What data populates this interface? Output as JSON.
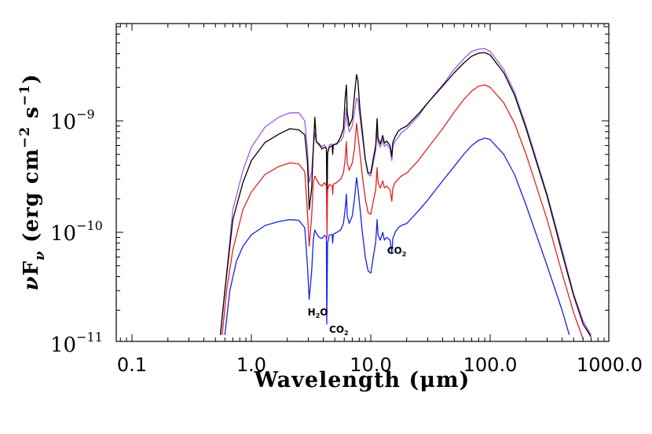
{
  "chart_data": {
    "type": "line",
    "title": "",
    "xlabel": "Wavelength (μm)",
    "ylabel_parts": {
      "nu": "ν",
      "F": "F",
      "sub": "ν",
      "open": " (erg cm",
      "exp1": "−2",
      "mid": " s",
      "exp2": "−1",
      "close": ")"
    },
    "xscale": "log",
    "yscale": "log",
    "xlim": [
      0.06,
      1000
    ],
    "ylim": [
      1.3e-11,
      8e-09
    ],
    "x_tick_labels": [
      "0.1",
      "1.0",
      "10.0",
      "100.0",
      "1000.0"
    ],
    "x_tick_values": [
      0.1,
      1,
      10,
      100,
      1000
    ],
    "y_tick_labels": [
      {
        "base": "10",
        "exp": "−9",
        "value": 1e-09
      },
      {
        "base": "10",
        "exp": "−10",
        "value": 1e-10
      },
      {
        "base": "10",
        "exp": "−11",
        "value": 1e-11
      }
    ],
    "grid": false,
    "legend": "none",
    "annotations": [
      {
        "main": "H",
        "sub": "2",
        "rest": "O",
        "x": 3.6,
        "y": 1.8e-11
      },
      {
        "main": "CO",
        "sub": "2",
        "rest": "",
        "x": 5.4,
        "y": 1.25e-11
      },
      {
        "main": "CO",
        "sub": "2",
        "rest": "",
        "x": 16.5,
        "y": 6.4e-11
      }
    ],
    "series": [
      {
        "color": "#a15bd9",
        "points": [
          [
            0.55,
            1.2e-11
          ],
          [
            0.6,
            3e-11
          ],
          [
            0.7,
            1.6e-10
          ],
          [
            0.85,
            3.6e-10
          ],
          [
            1.0,
            5.8e-10
          ],
          [
            1.3,
            8.8e-10
          ],
          [
            1.7,
            1.08e-09
          ],
          [
            2.1,
            1.18e-09
          ],
          [
            2.5,
            1.18e-09
          ],
          [
            2.8,
            1e-09
          ],
          [
            2.95,
            5.5e-10
          ],
          [
            3.05,
            2.8e-10
          ],
          [
            3.2,
            3.5e-10
          ],
          [
            3.3,
            5.7e-10
          ],
          [
            3.4,
            7.8e-10
          ],
          [
            3.5,
            6.5e-10
          ],
          [
            3.7,
            6e-10
          ],
          [
            3.9,
            5.9e-10
          ],
          [
            4.1,
            6.1e-10
          ],
          [
            4.25,
            5.6e-10
          ],
          [
            4.3,
            1.8e-10
          ],
          [
            4.35,
            5e-10
          ],
          [
            4.5,
            6.1e-10
          ],
          [
            4.75,
            6.2e-10
          ],
          [
            4.8,
            5.4e-10
          ],
          [
            4.85,
            6.1e-10
          ],
          [
            5.2,
            6.3e-10
          ],
          [
            5.6,
            6.6e-10
          ],
          [
            5.9,
            7.3e-10
          ],
          [
            6.1,
            9.6e-10
          ],
          [
            6.25,
            1.3e-09
          ],
          [
            6.35,
            9.8e-10
          ],
          [
            6.6,
            8e-10
          ],
          [
            7.0,
            9e-10
          ],
          [
            7.3,
            1.2e-09
          ],
          [
            7.6,
            1.6e-09
          ],
          [
            7.8,
            1.55e-09
          ],
          [
            8.1,
            1.1e-09
          ],
          [
            8.5,
            7.3e-10
          ],
          [
            9.0,
            4.5e-10
          ],
          [
            9.5,
            3.3e-10
          ],
          [
            10.0,
            3.2e-10
          ],
          [
            10.5,
            4.2e-10
          ],
          [
            11.0,
            5.5e-10
          ],
          [
            11.3,
            8.4e-10
          ],
          [
            11.5,
            6.4e-10
          ],
          [
            12.0,
            5.8e-10
          ],
          [
            12.6,
            6.8e-10
          ],
          [
            13.0,
            5.9e-10
          ],
          [
            13.6,
            6.2e-10
          ],
          [
            14.5,
            5.6e-10
          ],
          [
            15.0,
            4.4e-10
          ],
          [
            15.3,
            5.9e-10
          ],
          [
            16.0,
            6.6e-10
          ],
          [
            17.0,
            7.1e-10
          ],
          [
            18.0,
            7.8e-10
          ],
          [
            20.0,
            8.5e-10
          ],
          [
            25.0,
            1.1e-09
          ],
          [
            30.0,
            1.45e-09
          ],
          [
            40.0,
            2.1e-09
          ],
          [
            50.0,
            2.9e-09
          ],
          [
            60.0,
            3.6e-09
          ],
          [
            70.0,
            4.2e-09
          ],
          [
            80.0,
            4.4e-09
          ],
          [
            90.0,
            4.45e-09
          ],
          [
            100.0,
            4.2e-09
          ],
          [
            130.0,
            2.9e-09
          ],
          [
            160.0,
            1.8e-09
          ],
          [
            200.0,
            9e-10
          ],
          [
            300.0,
            2.2e-10
          ],
          [
            400.0,
            7e-11
          ],
          [
            500.0,
            2.8e-11
          ],
          [
            600.0,
            1.6e-11
          ],
          [
            700.0,
            1.2e-11
          ]
        ]
      },
      {
        "color": "#000000",
        "points": [
          [
            0.55,
            1.2e-11
          ],
          [
            0.6,
            3e-11
          ],
          [
            0.7,
            1.3e-10
          ],
          [
            0.85,
            2.8e-10
          ],
          [
            1.0,
            4.4e-10
          ],
          [
            1.3,
            6.4e-10
          ],
          [
            1.7,
            7.6e-10
          ],
          [
            2.1,
            8.5e-10
          ],
          [
            2.5,
            8.3e-10
          ],
          [
            2.8,
            7.5e-10
          ],
          [
            2.95,
            4.2e-10
          ],
          [
            3.05,
            1.6e-10
          ],
          [
            3.2,
            2.5e-10
          ],
          [
            3.3,
            5.5e-10
          ],
          [
            3.4,
            1.08e-09
          ],
          [
            3.5,
            6.5e-10
          ],
          [
            3.7,
            6.2e-10
          ],
          [
            3.9,
            5.6e-10
          ],
          [
            4.1,
            5.8e-10
          ],
          [
            4.25,
            5.7e-10
          ],
          [
            4.3,
            1.8e-10
          ],
          [
            4.35,
            5.2e-10
          ],
          [
            4.5,
            5.8e-10
          ],
          [
            4.75,
            6e-10
          ],
          [
            4.8,
            5e-10
          ],
          [
            4.85,
            6.1e-10
          ],
          [
            5.2,
            6.2e-10
          ],
          [
            5.6,
            7.2e-10
          ],
          [
            5.9,
            8.5e-10
          ],
          [
            6.1,
            1.6e-09
          ],
          [
            6.25,
            2.1e-09
          ],
          [
            6.35,
            1.2e-09
          ],
          [
            6.6,
            9e-10
          ],
          [
            7.0,
            1.05e-09
          ],
          [
            7.3,
            1.7e-09
          ],
          [
            7.6,
            2.6e-09
          ],
          [
            7.8,
            2.3e-09
          ],
          [
            8.1,
            1.3e-09
          ],
          [
            8.5,
            8e-10
          ],
          [
            9.0,
            4.5e-10
          ],
          [
            9.5,
            3.4e-10
          ],
          [
            10.0,
            3.4e-10
          ],
          [
            10.5,
            4.6e-10
          ],
          [
            11.0,
            6e-10
          ],
          [
            11.3,
            1.05e-09
          ],
          [
            11.5,
            7e-10
          ],
          [
            12.0,
            6.2e-10
          ],
          [
            12.6,
            7.4e-10
          ],
          [
            13.0,
            6.3e-10
          ],
          [
            13.6,
            6.6e-10
          ],
          [
            14.5,
            6e-10
          ],
          [
            15.0,
            4.8e-10
          ],
          [
            15.3,
            6.4e-10
          ],
          [
            16.0,
            7.2e-10
          ],
          [
            17.0,
            8.1e-10
          ],
          [
            18.0,
            8.5e-10
          ],
          [
            20.0,
            9e-10
          ],
          [
            25.0,
            1.15e-09
          ],
          [
            30.0,
            1.45e-09
          ],
          [
            40.0,
            2.05e-09
          ],
          [
            50.0,
            2.7e-09
          ],
          [
            60.0,
            3.3e-09
          ],
          [
            70.0,
            3.8e-09
          ],
          [
            80.0,
            4.05e-09
          ],
          [
            90.0,
            4.1e-09
          ],
          [
            100.0,
            3.9e-09
          ],
          [
            130.0,
            2.7e-09
          ],
          [
            160.0,
            1.7e-09
          ],
          [
            200.0,
            8.5e-10
          ],
          [
            300.0,
            2.1e-10
          ],
          [
            400.0,
            6.5e-11
          ],
          [
            500.0,
            2.7e-11
          ],
          [
            600.0,
            1.5e-11
          ],
          [
            700.0,
            1.15e-11
          ]
        ]
      },
      {
        "color": "#e62020",
        "points": [
          [
            0.57,
            1.2e-11
          ],
          [
            0.62,
            3e-11
          ],
          [
            0.7,
            7e-11
          ],
          [
            0.85,
            1.6e-10
          ],
          [
            1.0,
            2.3e-10
          ],
          [
            1.3,
            3.3e-10
          ],
          [
            1.7,
            3.9e-10
          ],
          [
            2.1,
            4.2e-10
          ],
          [
            2.5,
            4.1e-10
          ],
          [
            2.8,
            3.5e-10
          ],
          [
            2.95,
            1.5e-10
          ],
          [
            3.05,
            7.5e-11
          ],
          [
            3.2,
            1.4e-10
          ],
          [
            3.3,
            2.8e-10
          ],
          [
            3.4,
            3.2e-10
          ],
          [
            3.5,
            3e-10
          ],
          [
            3.7,
            2.7e-10
          ],
          [
            3.9,
            2.6e-10
          ],
          [
            4.1,
            2.8e-10
          ],
          [
            4.25,
            2.6e-10
          ],
          [
            4.3,
            9e-11
          ],
          [
            4.35,
            2.4e-10
          ],
          [
            4.5,
            2.7e-10
          ],
          [
            4.75,
            2.6e-10
          ],
          [
            4.8,
            2.2e-10
          ],
          [
            4.85,
            2.7e-10
          ],
          [
            5.2,
            2.8e-10
          ],
          [
            5.6,
            3e-10
          ],
          [
            5.9,
            3.4e-10
          ],
          [
            6.1,
            4.5e-10
          ],
          [
            6.25,
            6.5e-10
          ],
          [
            6.35,
            4.2e-10
          ],
          [
            6.6,
            3.6e-10
          ],
          [
            7.0,
            4.2e-10
          ],
          [
            7.3,
            5.6e-10
          ],
          [
            7.6,
            9.5e-10
          ],
          [
            7.8,
            7.5e-10
          ],
          [
            8.1,
            5.2e-10
          ],
          [
            8.5,
            3.2e-10
          ],
          [
            9.0,
            2e-10
          ],
          [
            9.5,
            1.5e-10
          ],
          [
            10.0,
            1.45e-10
          ],
          [
            10.5,
            1.9e-10
          ],
          [
            11.0,
            2.4e-10
          ],
          [
            11.3,
            3.8e-10
          ],
          [
            11.5,
            2.8e-10
          ],
          [
            12.0,
            2.5e-10
          ],
          [
            12.6,
            2.9e-10
          ],
          [
            13.0,
            2.5e-10
          ],
          [
            13.6,
            2.6e-10
          ],
          [
            14.5,
            2.4e-10
          ],
          [
            15.0,
            1.9e-10
          ],
          [
            15.3,
            2.5e-10
          ],
          [
            16.0,
            2.8e-10
          ],
          [
            17.0,
            3e-10
          ],
          [
            18.0,
            3.2e-10
          ],
          [
            20.0,
            3.4e-10
          ],
          [
            25.0,
            4.4e-10
          ],
          [
            30.0,
            5.7e-10
          ],
          [
            40.0,
            8.5e-10
          ],
          [
            50.0,
            1.2e-09
          ],
          [
            60.0,
            1.55e-09
          ],
          [
            70.0,
            1.85e-09
          ],
          [
            80.0,
            2.05e-09
          ],
          [
            90.0,
            2.1e-09
          ],
          [
            100.0,
            2e-09
          ],
          [
            130.0,
            1.45e-09
          ],
          [
            160.0,
            9.5e-10
          ],
          [
            200.0,
            5e-10
          ],
          [
            300.0,
            1.3e-10
          ],
          [
            400.0,
            4.3e-11
          ],
          [
            500.0,
            1.9e-11
          ],
          [
            600.0,
            1.1e-11
          ]
        ]
      },
      {
        "color": "#1520e6",
        "points": [
          [
            0.6,
            1.2e-11
          ],
          [
            0.66,
            3e-11
          ],
          [
            0.75,
            5.5e-11
          ],
          [
            0.85,
            7.5e-11
          ],
          [
            1.0,
            9.5e-11
          ],
          [
            1.3,
            1.15e-10
          ],
          [
            1.7,
            1.25e-10
          ],
          [
            2.1,
            1.3e-10
          ],
          [
            2.5,
            1.28e-10
          ],
          [
            2.8,
            1.1e-10
          ],
          [
            2.95,
            5e-11
          ],
          [
            3.05,
            2.5e-11
          ],
          [
            3.2,
            4.5e-11
          ],
          [
            3.3,
            8.5e-11
          ],
          [
            3.4,
            1.05e-10
          ],
          [
            3.5,
            9.8e-11
          ],
          [
            3.7,
            9e-11
          ],
          [
            3.9,
            8.8e-11
          ],
          [
            4.1,
            9.4e-11
          ],
          [
            4.25,
            9e-11
          ],
          [
            4.28,
            1.5e-11
          ],
          [
            4.35,
            8e-11
          ],
          [
            4.5,
            9.5e-11
          ],
          [
            4.75,
            9.5e-11
          ],
          [
            4.8,
            8e-11
          ],
          [
            4.85,
            9.6e-11
          ],
          [
            5.2,
            1e-10
          ],
          [
            5.6,
            1.05e-10
          ],
          [
            5.9,
            1.2e-10
          ],
          [
            6.1,
            1.6e-10
          ],
          [
            6.25,
            2.2e-10
          ],
          [
            6.35,
            1.4e-10
          ],
          [
            6.6,
            1.2e-10
          ],
          [
            7.0,
            1.4e-10
          ],
          [
            7.3,
            2e-10
          ],
          [
            7.6,
            3.1e-10
          ],
          [
            7.8,
            2.5e-10
          ],
          [
            8.1,
            1.7e-10
          ],
          [
            8.5,
            1e-10
          ],
          [
            9.0,
            6e-11
          ],
          [
            9.5,
            4.5e-11
          ],
          [
            10.0,
            4.3e-11
          ],
          [
            10.5,
            6e-11
          ],
          [
            11.0,
            8.2e-11
          ],
          [
            11.3,
            1.3e-10
          ],
          [
            11.5,
            9.5e-11
          ],
          [
            12.0,
            8.5e-11
          ],
          [
            12.6,
            1e-10
          ],
          [
            13.0,
            8.5e-11
          ],
          [
            13.6,
            9e-11
          ],
          [
            14.5,
            8.5e-11
          ],
          [
            15.0,
            6.5e-11
          ],
          [
            15.3,
            8.8e-11
          ],
          [
            16.0,
            1e-10
          ],
          [
            17.0,
            1.1e-10
          ],
          [
            18.0,
            1.15e-10
          ],
          [
            20.0,
            1.2e-10
          ],
          [
            25.0,
            1.55e-10
          ],
          [
            30.0,
            1.95e-10
          ],
          [
            40.0,
            2.9e-10
          ],
          [
            50.0,
            3.9e-10
          ],
          [
            60.0,
            5e-10
          ],
          [
            70.0,
            6e-10
          ],
          [
            80.0,
            6.7e-10
          ],
          [
            90.0,
            7e-10
          ],
          [
            100.0,
            6.8e-10
          ],
          [
            130.0,
            5e-10
          ],
          [
            160.0,
            3.3e-10
          ],
          [
            200.0,
            1.75e-10
          ],
          [
            300.0,
            5e-11
          ],
          [
            400.0,
            2e-11
          ],
          [
            460.0,
            1.2e-11
          ]
        ]
      }
    ]
  }
}
